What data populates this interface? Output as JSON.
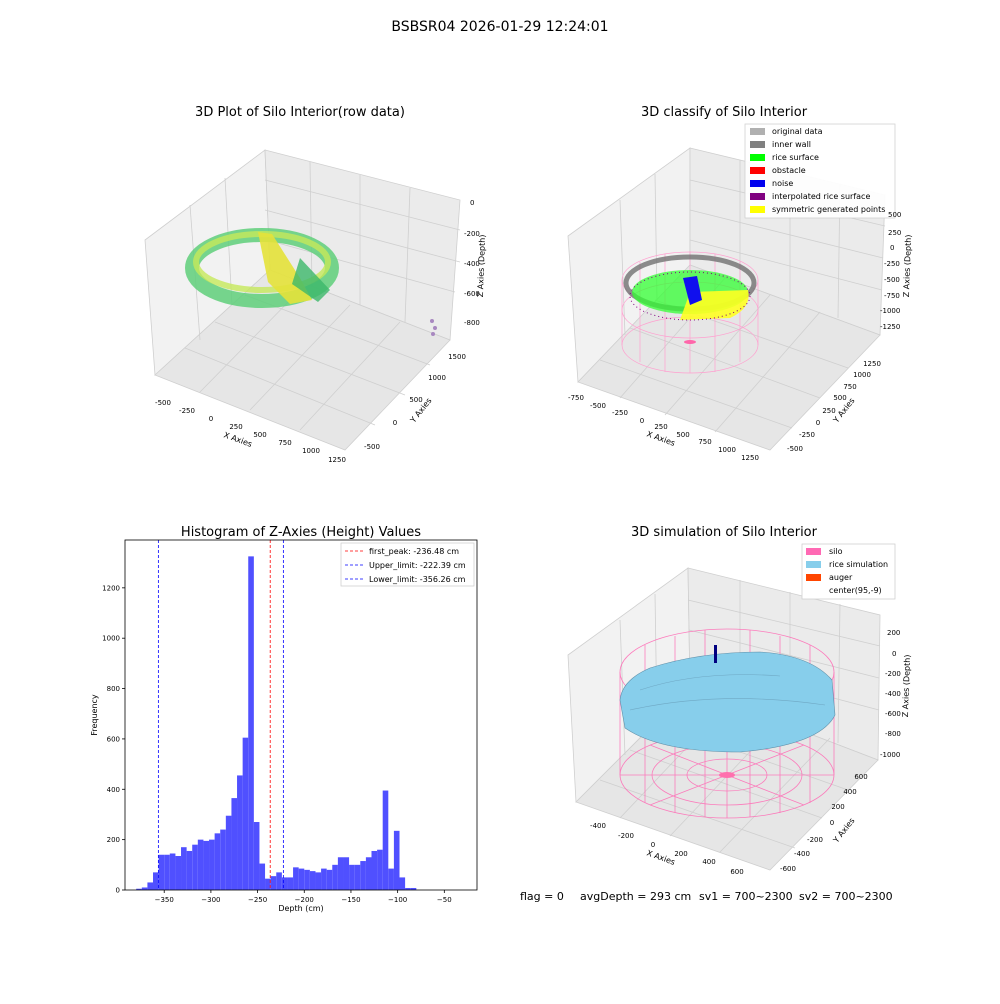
{
  "suptitle": "BSBSR04 2026-01-29 12:24:01",
  "panel_raw": {
    "title": "3D Plot of Silo Interior(row data)",
    "x_label": "X Axies",
    "y_label": "Y Axies",
    "z_label": "Z Axies (Depth)",
    "x_ticks": [
      "-500",
      "-250",
      "0",
      "250",
      "500",
      "750",
      "1000",
      "1250"
    ],
    "y_ticks": [
      "-500",
      "0",
      "500",
      "1000",
      "1500"
    ],
    "z_ticks": [
      "0",
      "-200",
      "-400",
      "-600",
      "-800"
    ]
  },
  "panel_classify": {
    "title": "3D classify of Silo Interior",
    "x_label": "X Axies",
    "y_label": "Y Axies",
    "z_label": "Z Axies (Depth)",
    "x_ticks": [
      "-750",
      "-500",
      "-250",
      "0",
      "250",
      "500",
      "750",
      "1000",
      "1250"
    ],
    "y_ticks": [
      "-500",
      "-250",
      "0",
      "250",
      "500",
      "750",
      "1000",
      "1250"
    ],
    "z_ticks": [
      "500",
      "250",
      "0",
      "-250",
      "-500",
      "-750",
      "-1000",
      "-1250"
    ],
    "legend": [
      {
        "label": "original data",
        "color": "#b0b0b0"
      },
      {
        "label": "inner wall",
        "color": "#808080"
      },
      {
        "label": "rice surface",
        "color": "#00ff00"
      },
      {
        "label": "obstacle",
        "color": "#ff0000"
      },
      {
        "label": "noise",
        "color": "#0000ee"
      },
      {
        "label": "interpolated rice surface",
        "color": "#800080"
      },
      {
        "label": "symmetric generated points",
        "color": "#ffff00"
      }
    ]
  },
  "panel_sim": {
    "title": "3D simulation of Silo Interior",
    "x_label": "X Axies",
    "y_label": "Y Axies",
    "z_label": "Z Axies (Depth)",
    "x_ticks": [
      "-400",
      "-200",
      "0",
      "200",
      "400",
      "600"
    ],
    "y_ticks": [
      "-600",
      "-400",
      "-200",
      "0",
      "200",
      "400",
      "600"
    ],
    "z_ticks": [
      "200",
      "0",
      "-200",
      "-400",
      "-600",
      "-800",
      "-1000"
    ],
    "legend": [
      {
        "label": "silo",
        "color": "#ff69b4"
      },
      {
        "label": "rice simulation",
        "color": "#87ceeb"
      },
      {
        "label": "auger",
        "color": "#ff4500"
      },
      {
        "label": "center(95,-9)",
        "color": "#ffffff"
      }
    ]
  },
  "status": {
    "flag": "flag = 0",
    "avg_depth": "avgDepth = 293 cm",
    "sv1": "sv1 = 700~2300",
    "sv2": "sv2 = 700~2300"
  },
  "chart_data": {
    "type": "bar",
    "title": "Histogram of Z-Axies (Height) Values",
    "xlabel": "Depth (cm)",
    "ylabel": "Frequency",
    "xlim": [
      -392,
      -15
    ],
    "ylim": [
      0,
      1390
    ],
    "x_ticks": [
      -350,
      -300,
      -250,
      -200,
      -150,
      -100,
      -50
    ],
    "y_ticks": [
      0,
      200,
      400,
      600,
      800,
      1000,
      1200
    ],
    "bar_color": "#5050ff",
    "bin_width": 6,
    "bin_start": -380,
    "values": [
      5,
      10,
      30,
      70,
      140,
      140,
      145,
      135,
      170,
      155,
      180,
      200,
      195,
      200,
      225,
      240,
      295,
      365,
      455,
      605,
      1325,
      270,
      105,
      45,
      55,
      70,
      50,
      50,
      90,
      85,
      80,
      75,
      70,
      85,
      80,
      100,
      130,
      130,
      100,
      100,
      115,
      130,
      155,
      160,
      395,
      85,
      235,
      50,
      8,
      8
    ],
    "lines": [
      {
        "label": "first_peak: -236.48 cm",
        "x": -236.48,
        "color": "#ff0000"
      },
      {
        "label": "Upper_limit: -222.39 cm",
        "x": -222.39,
        "color": "#0000ff"
      },
      {
        "label": "Lower_limit: -356.26 cm",
        "x": -356.26,
        "color": "#0000ff"
      }
    ]
  }
}
